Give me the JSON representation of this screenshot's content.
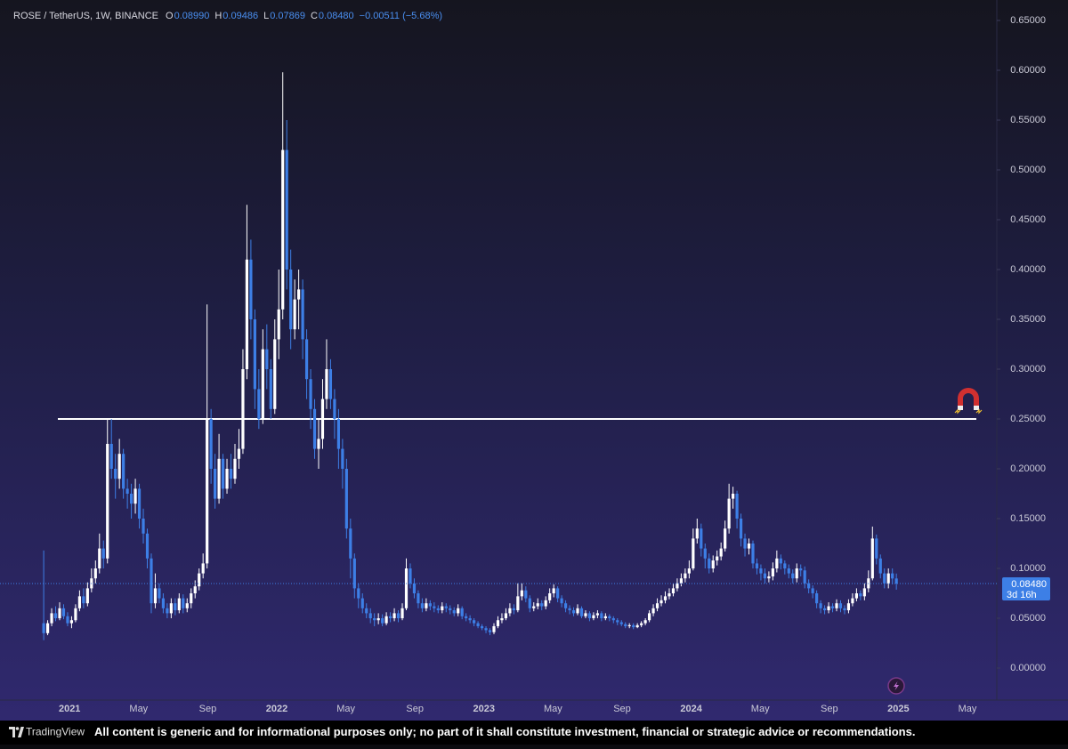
{
  "chart_data": {
    "type": "candlestick",
    "title": "ROSE / TetherUS, 1W, BINANCE",
    "ohlc_legend": [
      {
        "label": "O",
        "value": "0.08990"
      },
      {
        "label": "H",
        "value": "0.09486"
      },
      {
        "label": "L",
        "value": "0.07869"
      },
      {
        "label": "C",
        "value": "0.08480"
      }
    ],
    "change": "−0.00511 (−5.68%)",
    "colors": {
      "up": "#ffffff",
      "down": "#3d7fe6"
    },
    "xlim": [
      "2020-10",
      "2025-06"
    ],
    "xticks": [
      {
        "value": "2021-01",
        "label": "2021"
      },
      {
        "value": "2021-05",
        "label": "May"
      },
      {
        "value": "2021-09",
        "label": "Sep"
      },
      {
        "value": "2022-01",
        "label": "2022"
      },
      {
        "value": "2022-05",
        "label": "May"
      },
      {
        "value": "2022-09",
        "label": "Sep"
      },
      {
        "value": "2023-01",
        "label": "2023"
      },
      {
        "value": "2023-05",
        "label": "May"
      },
      {
        "value": "2023-09",
        "label": "Sep"
      },
      {
        "value": "2024-01",
        "label": "2024"
      },
      {
        "value": "2024-05",
        "label": "May"
      },
      {
        "value": "2024-09",
        "label": "Sep"
      },
      {
        "value": "2025-01",
        "label": "2025"
      },
      {
        "value": "2025-05",
        "label": "May"
      }
    ],
    "ylim": [
      -0.03,
      0.66
    ],
    "yticks": [
      {
        "value": 0,
        "label": "0.00000"
      },
      {
        "value": 0.05,
        "label": "0.05000"
      },
      {
        "value": 0.1,
        "label": "0.10000"
      },
      {
        "value": 0.15,
        "label": "0.15000"
      },
      {
        "value": 0.2,
        "label": "0.20000"
      },
      {
        "value": 0.25,
        "label": "0.25000"
      },
      {
        "value": 0.3,
        "label": "0.30000"
      },
      {
        "value": 0.35,
        "label": "0.35000"
      },
      {
        "value": 0.4,
        "label": "0.40000"
      },
      {
        "value": 0.45,
        "label": "0.45000"
      },
      {
        "value": 0.5,
        "label": "0.50000"
      },
      {
        "value": 0.55,
        "label": "0.55000"
      },
      {
        "value": 0.6,
        "label": "0.60000"
      },
      {
        "value": 0.65,
        "label": "0.65000"
      }
    ],
    "hline": 0.25,
    "last_price": {
      "value": 0.0848,
      "label": "0.08480",
      "countdown": "3d 16h"
    },
    "open": [
      0.045,
      0.035,
      0.045,
      0.055,
      0.05,
      0.06,
      0.052,
      0.045,
      0.048,
      0.06,
      0.072,
      0.065,
      0.08,
      0.09,
      0.1,
      0.12,
      0.11,
      0.225,
      0.2,
      0.19,
      0.215,
      0.18,
      0.175,
      0.165,
      0.18,
      0.15,
      0.135,
      0.11,
      0.065,
      0.08,
      0.07,
      0.06,
      0.055,
      0.065,
      0.058,
      0.07,
      0.06,
      0.065,
      0.075,
      0.082,
      0.095,
      0.105,
      0.25,
      0.2,
      0.17,
      0.21,
      0.18,
      0.2,
      0.19,
      0.21,
      0.22,
      0.3,
      0.41,
      0.35,
      0.28,
      0.25,
      0.32,
      0.3,
      0.26,
      0.33,
      0.36,
      0.52,
      0.4,
      0.34,
      0.37,
      0.38,
      0.33,
      0.29,
      0.26,
      0.22,
      0.23,
      0.27,
      0.3,
      0.27,
      0.25,
      0.22,
      0.2,
      0.14,
      0.11,
      0.08,
      0.07,
      0.06,
      0.055,
      0.05,
      0.048,
      0.05,
      0.045,
      0.052,
      0.05,
      0.055,
      0.05,
      0.06,
      0.1,
      0.085,
      0.075,
      0.065,
      0.06,
      0.065,
      0.062,
      0.06,
      0.058,
      0.062,
      0.06,
      0.058,
      0.055,
      0.06,
      0.052,
      0.05,
      0.048,
      0.045,
      0.042,
      0.04,
      0.038,
      0.036,
      0.042,
      0.048,
      0.05,
      0.055,
      0.06,
      0.058,
      0.072,
      0.078,
      0.07,
      0.06,
      0.062,
      0.065,
      0.062,
      0.068,
      0.075,
      0.08,
      0.07,
      0.065,
      0.06,
      0.058,
      0.055,
      0.06,
      0.052,
      0.055,
      0.05,
      0.053,
      0.055,
      0.05,
      0.052,
      0.05,
      0.048,
      0.046,
      0.044,
      0.042,
      0.043,
      0.041,
      0.043,
      0.045,
      0.048,
      0.055,
      0.06,
      0.065,
      0.068,
      0.072,
      0.075,
      0.08,
      0.085,
      0.09,
      0.095,
      0.1,
      0.13,
      0.14,
      0.12,
      0.11,
      0.1,
      0.108,
      0.112,
      0.12,
      0.14,
      0.17,
      0.175,
      0.15,
      0.13,
      0.12,
      0.125,
      0.105,
      0.1,
      0.095,
      0.09,
      0.092,
      0.1,
      0.11,
      0.105,
      0.1,
      0.095,
      0.09,
      0.1,
      0.098,
      0.085,
      0.08,
      0.075,
      0.065,
      0.06,
      0.058,
      0.062,
      0.06,
      0.065,
      0.06,
      0.058,
      0.065,
      0.07,
      0.075,
      0.072,
      0.08,
      0.09,
      0.13,
      0.11,
      0.095,
      0.085,
      0.095,
      0.0899
    ],
    "high": [
      0.118,
      0.048,
      0.06,
      0.062,
      0.066,
      0.064,
      0.056,
      0.052,
      0.064,
      0.078,
      0.08,
      0.086,
      0.1,
      0.108,
      0.135,
      0.128,
      0.25,
      0.25,
      0.215,
      0.23,
      0.22,
      0.19,
      0.185,
      0.19,
      0.185,
      0.16,
      0.14,
      0.115,
      0.095,
      0.085,
      0.075,
      0.065,
      0.07,
      0.07,
      0.075,
      0.074,
      0.07,
      0.08,
      0.088,
      0.1,
      0.115,
      0.365,
      0.26,
      0.215,
      0.235,
      0.215,
      0.21,
      0.215,
      0.225,
      0.24,
      0.32,
      0.465,
      0.43,
      0.36,
      0.3,
      0.34,
      0.345,
      0.31,
      0.35,
      0.4,
      0.598,
      0.55,
      0.42,
      0.39,
      0.4,
      0.39,
      0.34,
      0.3,
      0.27,
      0.25,
      0.29,
      0.33,
      0.31,
      0.28,
      0.26,
      0.23,
      0.21,
      0.15,
      0.115,
      0.085,
      0.075,
      0.065,
      0.06,
      0.055,
      0.055,
      0.054,
      0.056,
      0.056,
      0.06,
      0.058,
      0.065,
      0.11,
      0.105,
      0.09,
      0.078,
      0.07,
      0.07,
      0.068,
      0.066,
      0.063,
      0.066,
      0.065,
      0.063,
      0.061,
      0.064,
      0.062,
      0.055,
      0.053,
      0.05,
      0.047,
      0.044,
      0.042,
      0.04,
      0.045,
      0.052,
      0.055,
      0.06,
      0.065,
      0.064,
      0.085,
      0.085,
      0.082,
      0.073,
      0.066,
      0.07,
      0.068,
      0.072,
      0.08,
      0.084,
      0.082,
      0.073,
      0.068,
      0.063,
      0.061,
      0.064,
      0.062,
      0.058,
      0.057,
      0.056,
      0.058,
      0.057,
      0.055,
      0.054,
      0.052,
      0.05,
      0.048,
      0.046,
      0.045,
      0.045,
      0.045,
      0.047,
      0.05,
      0.058,
      0.064,
      0.07,
      0.073,
      0.077,
      0.08,
      0.085,
      0.09,
      0.095,
      0.1,
      0.108,
      0.14,
      0.15,
      0.145,
      0.125,
      0.115,
      0.113,
      0.118,
      0.126,
      0.148,
      0.185,
      0.182,
      0.178,
      0.155,
      0.135,
      0.13,
      0.128,
      0.11,
      0.104,
      0.1,
      0.097,
      0.106,
      0.118,
      0.114,
      0.108,
      0.104,
      0.099,
      0.105,
      0.104,
      0.102,
      0.089,
      0.083,
      0.078,
      0.068,
      0.063,
      0.066,
      0.065,
      0.069,
      0.068,
      0.063,
      0.069,
      0.075,
      0.08,
      0.078,
      0.085,
      0.098,
      0.142,
      0.134,
      0.114,
      0.1,
      0.1,
      0.1,
      0.09486
    ],
    "low": [
      0.028,
      0.033,
      0.042,
      0.047,
      0.048,
      0.049,
      0.042,
      0.04,
      0.046,
      0.057,
      0.06,
      0.062,
      0.076,
      0.085,
      0.095,
      0.1,
      0.105,
      0.19,
      0.17,
      0.18,
      0.17,
      0.16,
      0.15,
      0.155,
      0.14,
      0.125,
      0.1,
      0.055,
      0.06,
      0.065,
      0.055,
      0.05,
      0.05,
      0.053,
      0.055,
      0.055,
      0.056,
      0.06,
      0.07,
      0.078,
      0.09,
      0.1,
      0.185,
      0.16,
      0.165,
      0.17,
      0.175,
      0.18,
      0.185,
      0.2,
      0.215,
      0.29,
      0.33,
      0.26,
      0.24,
      0.245,
      0.28,
      0.25,
      0.255,
      0.31,
      0.35,
      0.38,
      0.32,
      0.33,
      0.34,
      0.31,
      0.27,
      0.24,
      0.21,
      0.2,
      0.22,
      0.26,
      0.26,
      0.23,
      0.2,
      0.18,
      0.13,
      0.09,
      0.07,
      0.06,
      0.055,
      0.05,
      0.045,
      0.042,
      0.044,
      0.042,
      0.043,
      0.046,
      0.047,
      0.046,
      0.048,
      0.058,
      0.08,
      0.07,
      0.06,
      0.056,
      0.057,
      0.058,
      0.056,
      0.055,
      0.055,
      0.056,
      0.054,
      0.052,
      0.052,
      0.049,
      0.047,
      0.045,
      0.042,
      0.04,
      0.038,
      0.035,
      0.033,
      0.034,
      0.04,
      0.045,
      0.048,
      0.052,
      0.054,
      0.056,
      0.068,
      0.066,
      0.056,
      0.057,
      0.059,
      0.058,
      0.059,
      0.065,
      0.071,
      0.066,
      0.061,
      0.056,
      0.054,
      0.052,
      0.053,
      0.05,
      0.05,
      0.047,
      0.048,
      0.05,
      0.047,
      0.048,
      0.047,
      0.045,
      0.043,
      0.042,
      0.04,
      0.04,
      0.039,
      0.04,
      0.041,
      0.043,
      0.046,
      0.052,
      0.057,
      0.062,
      0.065,
      0.069,
      0.072,
      0.077,
      0.082,
      0.086,
      0.09,
      0.098,
      0.125,
      0.112,
      0.1,
      0.095,
      0.096,
      0.103,
      0.108,
      0.117,
      0.135,
      0.16,
      0.14,
      0.122,
      0.112,
      0.114,
      0.1,
      0.094,
      0.088,
      0.085,
      0.086,
      0.088,
      0.096,
      0.099,
      0.094,
      0.09,
      0.085,
      0.086,
      0.092,
      0.08,
      0.075,
      0.07,
      0.06,
      0.055,
      0.054,
      0.055,
      0.056,
      0.057,
      0.056,
      0.054,
      0.055,
      0.062,
      0.067,
      0.068,
      0.068,
      0.076,
      0.088,
      0.104,
      0.09,
      0.08,
      0.08,
      0.084,
      0.07869
    ],
    "close": [
      0.035,
      0.045,
      0.055,
      0.05,
      0.06,
      0.052,
      0.045,
      0.048,
      0.06,
      0.072,
      0.065,
      0.08,
      0.09,
      0.1,
      0.12,
      0.11,
      0.225,
      0.2,
      0.19,
      0.215,
      0.18,
      0.175,
      0.165,
      0.18,
      0.15,
      0.135,
      0.11,
      0.065,
      0.08,
      0.07,
      0.06,
      0.055,
      0.065,
      0.058,
      0.07,
      0.06,
      0.065,
      0.075,
      0.082,
      0.095,
      0.105,
      0.25,
      0.2,
      0.17,
      0.21,
      0.18,
      0.2,
      0.19,
      0.21,
      0.22,
      0.3,
      0.41,
      0.35,
      0.28,
      0.25,
      0.32,
      0.3,
      0.26,
      0.33,
      0.36,
      0.52,
      0.4,
      0.34,
      0.37,
      0.38,
      0.33,
      0.29,
      0.26,
      0.22,
      0.23,
      0.27,
      0.3,
      0.27,
      0.25,
      0.22,
      0.2,
      0.14,
      0.11,
      0.08,
      0.07,
      0.06,
      0.055,
      0.05,
      0.048,
      0.05,
      0.045,
      0.052,
      0.05,
      0.055,
      0.05,
      0.06,
      0.1,
      0.085,
      0.075,
      0.065,
      0.06,
      0.065,
      0.062,
      0.06,
      0.058,
      0.062,
      0.06,
      0.058,
      0.055,
      0.06,
      0.052,
      0.05,
      0.048,
      0.045,
      0.042,
      0.04,
      0.038,
      0.036,
      0.042,
      0.048,
      0.05,
      0.055,
      0.06,
      0.058,
      0.072,
      0.078,
      0.07,
      0.06,
      0.062,
      0.065,
      0.062,
      0.068,
      0.075,
      0.08,
      0.07,
      0.065,
      0.06,
      0.058,
      0.055,
      0.06,
      0.052,
      0.055,
      0.05,
      0.053,
      0.055,
      0.05,
      0.052,
      0.05,
      0.048,
      0.046,
      0.044,
      0.042,
      0.043,
      0.041,
      0.043,
      0.045,
      0.048,
      0.055,
      0.06,
      0.065,
      0.068,
      0.072,
      0.075,
      0.08,
      0.085,
      0.09,
      0.095,
      0.1,
      0.13,
      0.14,
      0.12,
      0.11,
      0.1,
      0.108,
      0.112,
      0.12,
      0.14,
      0.17,
      0.175,
      0.15,
      0.13,
      0.12,
      0.125,
      0.105,
      0.1,
      0.095,
      0.09,
      0.092,
      0.1,
      0.11,
      0.105,
      0.1,
      0.095,
      0.09,
      0.1,
      0.098,
      0.085,
      0.08,
      0.075,
      0.065,
      0.06,
      0.058,
      0.062,
      0.06,
      0.065,
      0.06,
      0.058,
      0.065,
      0.07,
      0.075,
      0.072,
      0.08,
      0.09,
      0.13,
      0.11,
      0.095,
      0.085,
      0.095,
      0.0899,
      0.0848
    ]
  },
  "footer": {
    "brand": "TradingView",
    "disclaimer": "All content is generic and for informational purposes only; no part of it shall constitute investment, financial or strategic advice or recommendations."
  }
}
